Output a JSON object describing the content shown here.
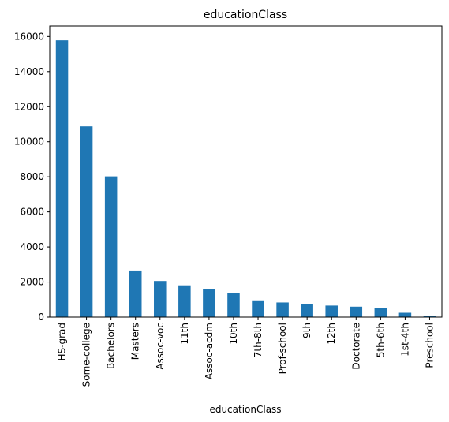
{
  "chart_data": {
    "type": "bar",
    "title": "educationClass",
    "xlabel": "educationClass",
    "ylabel": "",
    "ylim": [
      0,
      16600
    ],
    "yticks": [
      0,
      2000,
      4000,
      6000,
      8000,
      10000,
      12000,
      14000,
      16000
    ],
    "categories": [
      "HS-grad",
      "Some-college",
      "Bachelors",
      "Masters",
      "Assoc-voc",
      "11th",
      "Assoc-acdm",
      "10th",
      "7th-8th",
      "Prof-school",
      "9th",
      "12th",
      "Doctorate",
      "5th-6th",
      "1st-4th",
      "Preschool"
    ],
    "values": [
      15784,
      10878,
      8025,
      2657,
      2061,
      1812,
      1601,
      1389,
      955,
      834,
      756,
      657,
      594,
      509,
      247,
      83
    ],
    "bar_color": "#1f77b4",
    "grid": false,
    "legend": "none"
  }
}
